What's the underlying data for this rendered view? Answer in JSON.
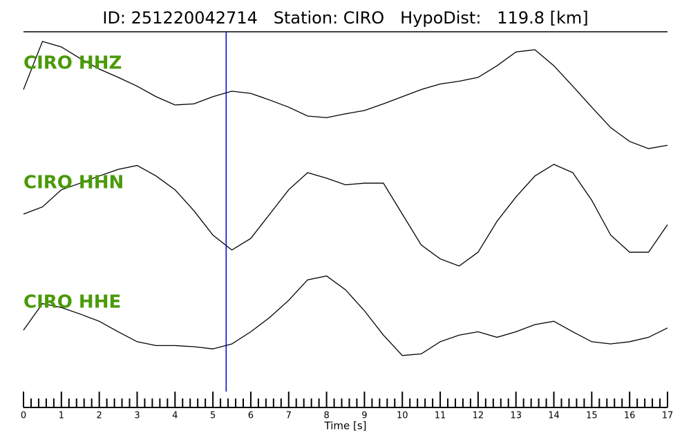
{
  "chart_data": {
    "type": "line",
    "title": "ID: 251220042714   Station: CIRO   HypoDist:   119.8 [km]",
    "xlabel": "Time [s]",
    "xlim": [
      0,
      17
    ],
    "xticks": [
      0,
      1,
      2,
      3,
      4,
      5,
      6,
      7,
      8,
      9,
      10,
      11,
      12,
      13,
      14,
      15,
      16,
      17
    ],
    "xminorticks": [
      0.2,
      0.4,
      0.6,
      0.8,
      1.2,
      1.4,
      1.6,
      1.8,
      2.2,
      2.4,
      2.6,
      2.8,
      3.2,
      3.4,
      3.6,
      3.8,
      4.2,
      4.4,
      4.6,
      4.8,
      5.2,
      5.4,
      5.6,
      5.8,
      6.2,
      6.4,
      6.6,
      6.8,
      7.2,
      7.4,
      7.6,
      7.8,
      8.2,
      8.4,
      8.6,
      8.8,
      9.2,
      9.4,
      9.6,
      9.8,
      10.2,
      10.4,
      10.6,
      10.8,
      11.2,
      11.4,
      11.6,
      11.8,
      12.2,
      12.4,
      12.6,
      12.8,
      13.2,
      13.4,
      13.6,
      13.8,
      14.2,
      14.4,
      14.6,
      14.8,
      15.2,
      15.4,
      15.6,
      15.8,
      16.2,
      16.4,
      16.6,
      16.8
    ],
    "ylim": [
      -1,
      1
    ],
    "label_color": "#4a9a0a",
    "markers": [
      {
        "x": 5.35,
        "color": "#0000cc"
      }
    ],
    "x": [
      0,
      0.5,
      1,
      1.5,
      2,
      2.5,
      3,
      3.5,
      4,
      4.5,
      5,
      5.5,
      6,
      6.5,
      7,
      7.5,
      8,
      8.5,
      9,
      9.5,
      10,
      10.5,
      11,
      11.5,
      12,
      12.5,
      13,
      13.5,
      14,
      14.5,
      15,
      15.5,
      16,
      16.5,
      17
    ],
    "series": [
      {
        "name": "CIRO HHZ",
        "color": "#000000",
        "values": [
          0.13,
          1.0,
          0.9,
          0.69,
          0.5,
          0.35,
          0.19,
          0,
          -0.15,
          -0.13,
          0,
          0.1,
          0.06,
          -0.06,
          -0.19,
          -0.35,
          -0.38,
          -0.31,
          -0.25,
          -0.13,
          0,
          0.13,
          0.23,
          0.28,
          0.35,
          0.56,
          0.81,
          0.85,
          0.56,
          0.19,
          -0.19,
          -0.56,
          -0.81,
          -0.94,
          -0.88
        ]
      },
      {
        "name": "CIRO HHN",
        "color": "#000000",
        "values": [
          0,
          0.13,
          0.44,
          0.56,
          0.69,
          0.81,
          0.88,
          0.69,
          0.44,
          0.06,
          -0.38,
          -0.65,
          -0.44,
          0,
          0.44,
          0.75,
          0.65,
          0.53,
          0.56,
          0.56,
          0,
          -0.56,
          -0.81,
          -0.94,
          -0.69,
          -0.13,
          0.31,
          0.69,
          0.9,
          0.75,
          0.25,
          -0.38,
          -0.69,
          -0.69,
          -0.19
        ]
      },
      {
        "name": "CIRO HHE",
        "color": "#000000",
        "values": [
          -0.1,
          0.38,
          0.31,
          0.19,
          0.06,
          -0.13,
          -0.31,
          -0.38,
          -0.38,
          -0.4,
          -0.44,
          -0.35,
          -0.13,
          0.13,
          0.44,
          0.81,
          0.88,
          0.63,
          0.25,
          -0.19,
          -0.56,
          -0.53,
          -0.31,
          -0.19,
          -0.13,
          -0.23,
          -0.13,
          0,
          0.06,
          -0.13,
          -0.31,
          -0.35,
          -0.31,
          -0.23,
          -0.06
        ]
      }
    ]
  }
}
